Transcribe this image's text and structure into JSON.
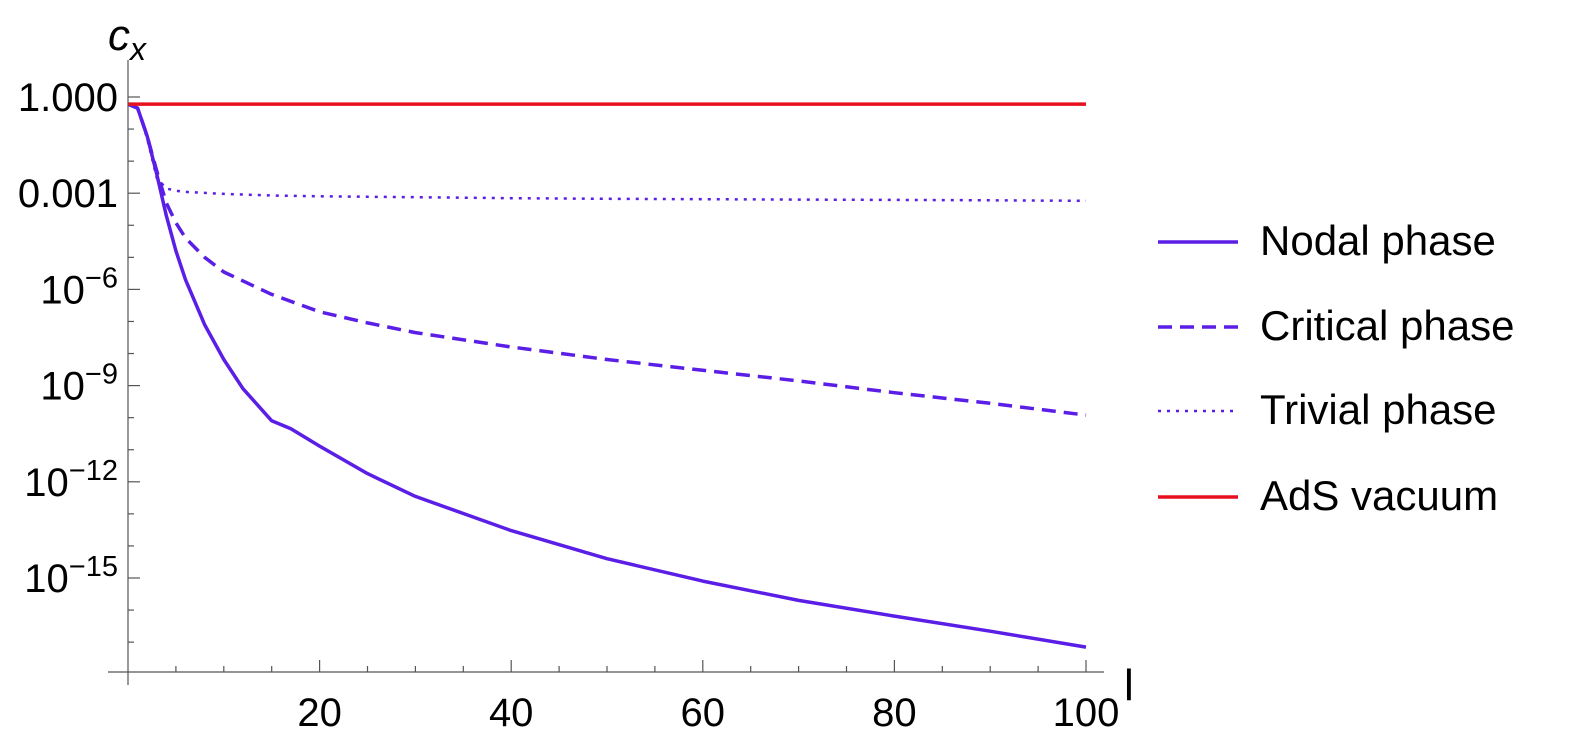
{
  "chart_data": {
    "type": "line",
    "title": "",
    "xlabel": "l",
    "ylabel": "c_x",
    "ylabel_main": "c",
    "ylabel_sub": "x",
    "y_scale": "log",
    "xlim": [
      0,
      102
    ],
    "ylim": [
      1e-18,
      1.5
    ],
    "x_ticks": [
      20,
      40,
      60,
      80,
      100
    ],
    "y_ticks": [
      {
        "value": 1,
        "label": "1.000"
      },
      {
        "value": 0.001,
        "label": "0.001"
      },
      {
        "value": 1e-06,
        "base": "10",
        "exp": "−6"
      },
      {
        "value": 1e-09,
        "base": "10",
        "exp": "−9"
      },
      {
        "value": 1e-12,
        "base": "10",
        "exp": "−12"
      },
      {
        "value": 1e-15,
        "base": "10",
        "exp": "−15"
      }
    ],
    "grid": false,
    "legend_position": "right",
    "series": [
      {
        "name": "Nodal phase",
        "color": "#5a1ee6",
        "style": "solid",
        "x": [
          0,
          1,
          2,
          3,
          4,
          5,
          6,
          8,
          10,
          12,
          15,
          17,
          20,
          25,
          30,
          40,
          50,
          60,
          70,
          80,
          90,
          100
        ],
        "y": [
          0.6,
          0.45,
          0.06,
          0.004,
          0.0002,
          1.6e-05,
          2e-06,
          8e-08,
          6.5e-09,
          8e-10,
          8e-11,
          4.5e-11,
          1.3e-11,
          1.8e-12,
          3.5e-13,
          3e-14,
          4e-15,
          8e-16,
          2e-16,
          6.5e-17,
          2.2e-17,
          7e-18
        ]
      },
      {
        "name": "Critical phase",
        "color": "#5a1ee6",
        "style": "dashed",
        "x": [
          0,
          1,
          2,
          3,
          4,
          5,
          6,
          8,
          10,
          15,
          20,
          25,
          30,
          40,
          50,
          60,
          70,
          80,
          90,
          100
        ],
        "y": [
          0.6,
          0.45,
          0.06,
          0.005,
          0.0005,
          0.00012,
          4e-05,
          1e-05,
          3.5e-06,
          7e-07,
          2e-07,
          9e-08,
          4.5e-08,
          1.6e-08,
          6.5e-09,
          3e-09,
          1.4e-09,
          6e-10,
          2.8e-10,
          1.2e-10
        ]
      },
      {
        "name": "Trivial phase",
        "color": "#5a1ee6",
        "style": "dotted",
        "x": [
          0,
          1,
          2,
          3,
          4,
          5,
          6,
          10,
          15,
          20,
          30,
          40,
          50,
          60,
          70,
          80,
          90,
          100
        ],
        "y": [
          0.6,
          0.45,
          0.05,
          0.003,
          0.0014,
          0.0012,
          0.0011,
          0.00095,
          0.00085,
          0.0008,
          0.00075,
          0.0007,
          0.00067,
          0.00065,
          0.00063,
          0.00062,
          0.0006,
          0.00058
        ]
      },
      {
        "name": "AdS vacuum",
        "color": "#e8101c",
        "style": "solid",
        "x": [
          0,
          100
        ],
        "y": [
          0.6,
          0.6
        ]
      }
    ]
  }
}
